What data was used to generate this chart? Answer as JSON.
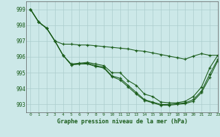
{
  "title": "Graphe pression niveau de la mer (hPa)",
  "xlim": [
    -0.5,
    23
  ],
  "ylim": [
    992.5,
    999.5
  ],
  "yticks": [
    993,
    994,
    995,
    996,
    997,
    998,
    999
  ],
  "xticks": [
    0,
    1,
    2,
    3,
    4,
    5,
    6,
    7,
    8,
    9,
    10,
    11,
    12,
    13,
    14,
    15,
    16,
    17,
    18,
    19,
    20,
    21,
    22,
    23
  ],
  "bg_color": "#cce8e8",
  "grid_color": "#aacccc",
  "line_color": "#1a5c1a",
  "lines": [
    {
      "x": [
        0,
        1,
        2,
        3,
        4,
        5,
        6,
        7,
        8,
        9,
        10,
        11,
        12,
        13,
        14,
        15,
        16,
        17,
        18,
        19,
        20,
        21,
        22,
        23
      ],
      "y": [
        999.0,
        998.2,
        997.8,
        997.0,
        996.8,
        996.8,
        996.75,
        996.75,
        996.7,
        996.65,
        996.6,
        996.55,
        996.5,
        996.4,
        996.35,
        996.25,
        996.15,
        996.05,
        995.95,
        995.85,
        996.05,
        996.2,
        996.1,
        996.1
      ]
    },
    {
      "x": [
        0,
        1,
        2,
        3,
        4,
        5,
        6,
        7,
        8,
        9,
        10,
        11,
        12,
        13,
        14,
        15,
        16,
        17,
        18,
        19,
        20,
        21,
        22,
        23
      ],
      "y": [
        999.0,
        998.2,
        997.8,
        997.0,
        996.1,
        995.55,
        995.6,
        995.65,
        995.55,
        995.45,
        995.0,
        995.0,
        994.5,
        994.2,
        993.65,
        993.5,
        993.15,
        993.1,
        993.1,
        993.2,
        993.5,
        994.1,
        995.3,
        996.1
      ]
    },
    {
      "x": [
        0,
        1,
        2,
        3,
        4,
        5,
        6,
        7,
        8,
        9,
        10,
        11,
        12,
        13,
        14,
        15,
        16,
        17,
        18,
        19,
        20,
        21,
        22,
        23
      ],
      "y": [
        999.0,
        998.2,
        997.8,
        997.0,
        996.1,
        995.5,
        995.55,
        995.6,
        995.45,
        995.35,
        994.8,
        994.65,
        994.2,
        993.75,
        993.3,
        993.15,
        993.0,
        993.0,
        993.05,
        993.1,
        993.3,
        993.85,
        994.9,
        995.85
      ]
    },
    {
      "x": [
        0,
        1,
        2,
        3,
        4,
        5,
        6,
        7,
        8,
        9,
        10,
        11,
        12,
        13,
        14,
        15,
        16,
        17,
        18,
        19,
        20,
        21,
        22,
        23
      ],
      "y": [
        999.0,
        998.2,
        997.8,
        997.0,
        996.1,
        995.5,
        995.55,
        995.55,
        995.4,
        995.3,
        994.75,
        994.55,
        994.1,
        993.65,
        993.25,
        993.1,
        992.95,
        992.95,
        993.0,
        993.05,
        993.2,
        993.75,
        994.7,
        995.75
      ]
    }
  ]
}
